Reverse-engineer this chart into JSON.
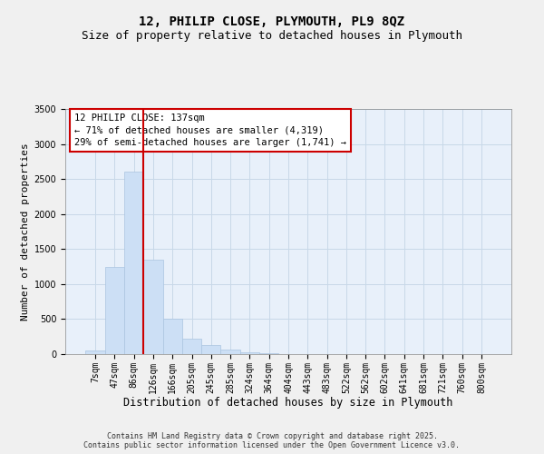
{
  "title": "12, PHILIP CLOSE, PLYMOUTH, PL9 8QZ",
  "subtitle": "Size of property relative to detached houses in Plymouth",
  "xlabel": "Distribution of detached houses by size in Plymouth",
  "ylabel": "Number of detached properties",
  "footer_line1": "Contains HM Land Registry data © Crown copyright and database right 2025.",
  "footer_line2": "Contains public sector information licensed under the Open Government Licence v3.0.",
  "categories": [
    "7sqm",
    "47sqm",
    "86sqm",
    "126sqm",
    "166sqm",
    "205sqm",
    "245sqm",
    "285sqm",
    "324sqm",
    "364sqm",
    "404sqm",
    "443sqm",
    "483sqm",
    "522sqm",
    "562sqm",
    "602sqm",
    "641sqm",
    "681sqm",
    "721sqm",
    "760sqm",
    "800sqm"
  ],
  "values": [
    50,
    1250,
    2600,
    1350,
    500,
    220,
    130,
    70,
    30,
    10,
    5,
    3,
    1,
    0,
    0,
    0,
    0,
    0,
    0,
    0,
    0
  ],
  "bar_color": "#ccdff5",
  "bar_edge_color": "#aac4e0",
  "vline_color": "#cc0000",
  "vline_x": 3.0,
  "annotation_title": "12 PHILIP CLOSE: 137sqm",
  "annotation_line2": "← 71% of detached houses are smaller (4,319)",
  "annotation_line3": "29% of semi-detached houses are larger (1,741) →",
  "annotation_box_color": "#cc0000",
  "ylim": [
    0,
    3500
  ],
  "yticks": [
    0,
    500,
    1000,
    1500,
    2000,
    2500,
    3000,
    3500
  ],
  "grid_color": "#c8d8e8",
  "plot_bg_color": "#e8f0fa",
  "fig_bg_color": "#f0f0f0",
  "title_fontsize": 10,
  "subtitle_fontsize": 9,
  "xlabel_fontsize": 8.5,
  "ylabel_fontsize": 8,
  "tick_fontsize": 7,
  "annotation_fontsize": 7.5,
  "footer_fontsize": 6
}
